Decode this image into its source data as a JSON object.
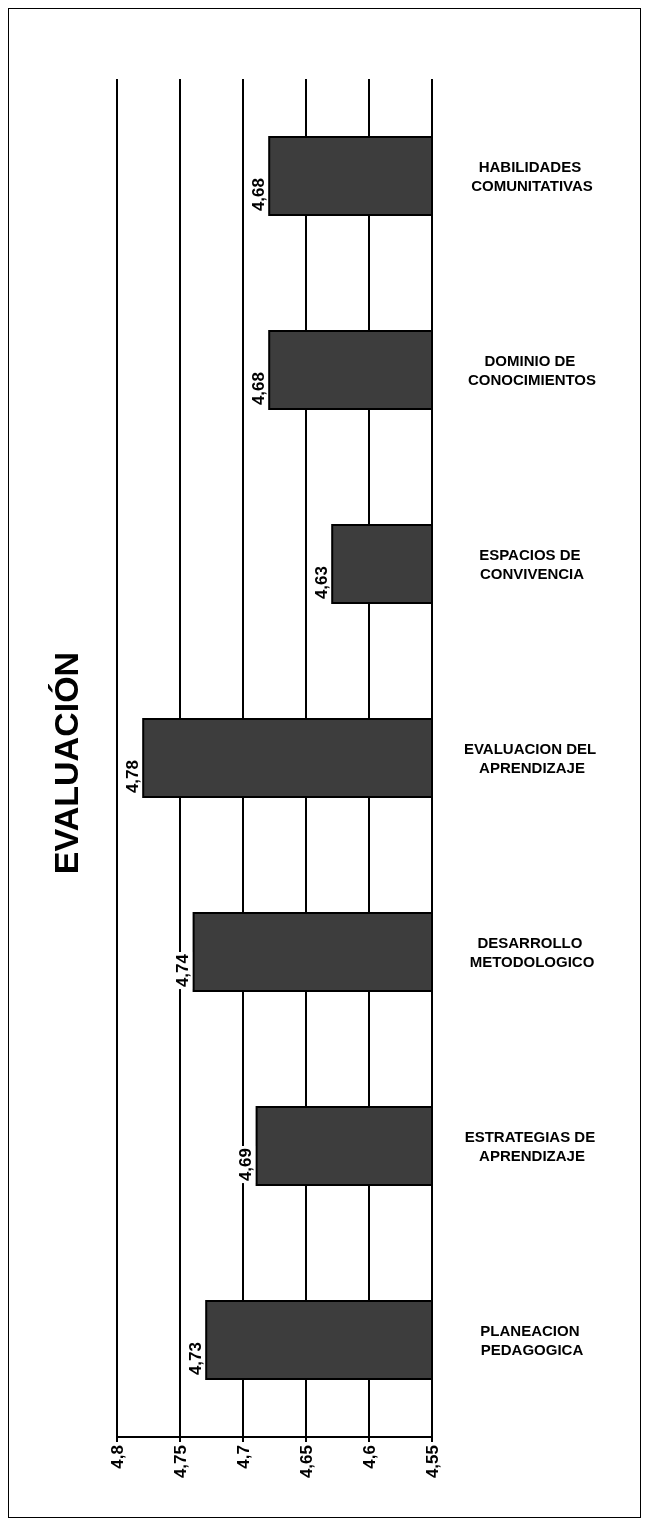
{
  "chart_data": {
    "type": "bar",
    "orientation": "horizontal",
    "title": "EVALUACIÓN",
    "categories": [
      "HABILIDADES COMUNITATIVAS",
      "DOMINIO DE CONOCIMIENTOS",
      "ESPACIOS DE CONVIVENCIA",
      "EVALUACION DEL APRENDIZAJE",
      "DESARROLLO METODOLOGICO",
      "ESTRATEGIAS DE APRENDIZAJE",
      "PLANEACION PEDAGOGICA"
    ],
    "values": [
      4.68,
      4.68,
      4.63,
      4.78,
      4.74,
      4.69,
      4.73
    ],
    "value_labels": [
      "4,68",
      "4,68",
      "4,63",
      "4,78",
      "4,74",
      "4,69",
      "4,73"
    ],
    "color": "#3d3d3d",
    "xlim": [
      4.8,
      4.55
    ],
    "xticks": [
      {
        "value": 4.8,
        "label": "4,8"
      },
      {
        "value": 4.75,
        "label": "4,75"
      },
      {
        "value": 4.7,
        "label": "4,7"
      },
      {
        "value": 4.65,
        "label": "4,65"
      },
      {
        "value": 4.6,
        "label": "4,6"
      },
      {
        "value": 4.55,
        "label": "4,55"
      }
    ],
    "grid": "x"
  }
}
